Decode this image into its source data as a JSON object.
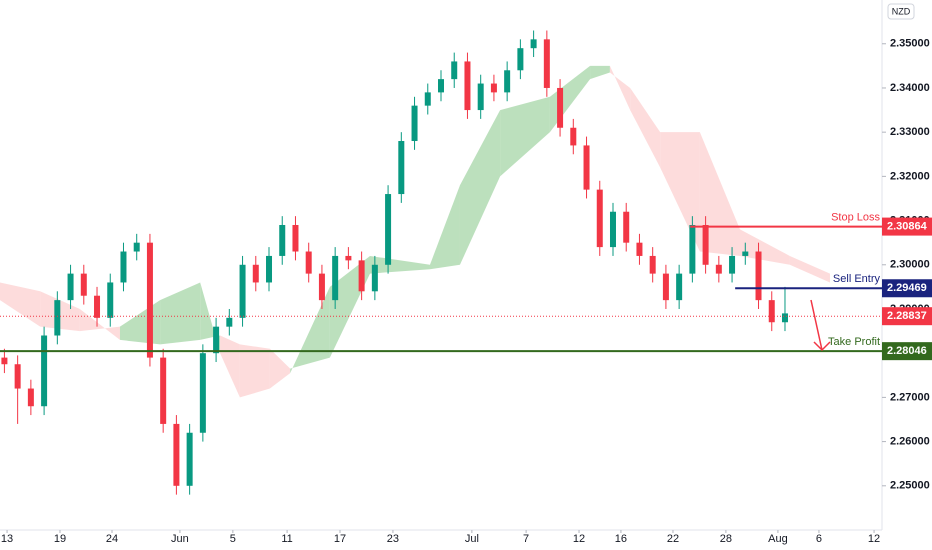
{
  "chart_data": {
    "type": "candlestick",
    "currency": "NZD",
    "xlim": [
      0,
      200
    ],
    "xticks": [
      {
        "value": 1.6,
        "label": "13"
      },
      {
        "value": 13.6,
        "label": "19"
      },
      {
        "value": 25.4,
        "label": "24"
      },
      {
        "value": 40.8,
        "label": "Jun"
      },
      {
        "value": 52.8,
        "label": "5"
      },
      {
        "value": 65.1,
        "label": "11"
      },
      {
        "value": 77.1,
        "label": "17"
      },
      {
        "value": 89.1,
        "label": "23"
      },
      {
        "value": 107,
        "label": "Jul"
      },
      {
        "value": 119.3,
        "label": "7"
      },
      {
        "value": 131.3,
        "label": "12"
      },
      {
        "value": 140.8,
        "label": "16"
      },
      {
        "value": 152.6,
        "label": "22"
      },
      {
        "value": 164.6,
        "label": "28"
      },
      {
        "value": 176.4,
        "label": "Aug"
      },
      {
        "value": 185.7,
        "label": "6"
      },
      {
        "value": 198.2,
        "label": "12"
      }
    ],
    "ylim": [
      2.24,
      2.3599
    ],
    "yticks": [
      {
        "value": 2.25,
        "label": "2.25000"
      },
      {
        "value": 2.26,
        "label": "2.26000"
      },
      {
        "value": 2.27,
        "label": "2.27000"
      },
      {
        "value": 2.28,
        "label": "2.28000"
      },
      {
        "value": 2.29,
        "label": "2.29000"
      },
      {
        "value": 2.3,
        "label": "2.30000"
      },
      {
        "value": 2.31,
        "label": "2.31000"
      },
      {
        "value": 2.32,
        "label": "2.32000"
      },
      {
        "value": 2.33,
        "label": "2.33000"
      },
      {
        "value": 2.34,
        "label": "2.34000"
      },
      {
        "value": 2.35,
        "label": "2.35000"
      }
    ],
    "up_color": "#089981",
    "down_color": "#f23645",
    "candles": [
      {
        "x": 1,
        "o": 2.279,
        "h": 2.281,
        "l": 2.2755,
        "c": 2.2775
      },
      {
        "x": 4,
        "o": 2.2775,
        "h": 2.2795,
        "l": 2.264,
        "c": 2.272
      },
      {
        "x": 7,
        "o": 2.272,
        "h": 2.274,
        "l": 2.266,
        "c": 2.268
      },
      {
        "x": 10,
        "o": 2.268,
        "h": 2.286,
        "l": 2.266,
        "c": 2.284
      },
      {
        "x": 13,
        "o": 2.284,
        "h": 2.294,
        "l": 2.282,
        "c": 2.292
      },
      {
        "x": 16,
        "o": 2.292,
        "h": 2.3,
        "l": 2.29,
        "c": 2.298
      },
      {
        "x": 19,
        "o": 2.298,
        "h": 2.3,
        "l": 2.291,
        "c": 2.293
      },
      {
        "x": 22,
        "o": 2.293,
        "h": 2.295,
        "l": 2.286,
        "c": 2.288
      },
      {
        "x": 25,
        "o": 2.288,
        "h": 2.298,
        "l": 2.286,
        "c": 2.296
      },
      {
        "x": 28,
        "o": 2.296,
        "h": 2.305,
        "l": 2.294,
        "c": 2.303
      },
      {
        "x": 31,
        "o": 2.303,
        "h": 2.307,
        "l": 2.301,
        "c": 2.305
      },
      {
        "x": 34,
        "o": 2.305,
        "h": 2.307,
        "l": 2.277,
        "c": 2.279
      },
      {
        "x": 37,
        "o": 2.279,
        "h": 2.281,
        "l": 2.262,
        "c": 2.264
      },
      {
        "x": 40,
        "o": 2.264,
        "h": 2.266,
        "l": 2.248,
        "c": 2.25
      },
      {
        "x": 43,
        "o": 2.25,
        "h": 2.264,
        "l": 2.248,
        "c": 2.262
      },
      {
        "x": 46,
        "o": 2.262,
        "h": 2.282,
        "l": 2.26,
        "c": 2.28
      },
      {
        "x": 49,
        "o": 2.28,
        "h": 2.288,
        "l": 2.278,
        "c": 2.286
      },
      {
        "x": 52,
        "o": 2.286,
        "h": 2.29,
        "l": 2.284,
        "c": 2.288
      },
      {
        "x": 55,
        "o": 2.288,
        "h": 2.302,
        "l": 2.286,
        "c": 2.3
      },
      {
        "x": 58,
        "o": 2.3,
        "h": 2.302,
        "l": 2.294,
        "c": 2.296
      },
      {
        "x": 61,
        "o": 2.296,
        "h": 2.304,
        "l": 2.294,
        "c": 2.302
      },
      {
        "x": 64,
        "o": 2.302,
        "h": 2.311,
        "l": 2.3,
        "c": 2.309
      },
      {
        "x": 67,
        "o": 2.309,
        "h": 2.311,
        "l": 2.301,
        "c": 2.303
      },
      {
        "x": 70,
        "o": 2.303,
        "h": 2.305,
        "l": 2.296,
        "c": 2.298
      },
      {
        "x": 73,
        "o": 2.298,
        "h": 2.3,
        "l": 2.29,
        "c": 2.292
      },
      {
        "x": 76,
        "o": 2.292,
        "h": 2.304,
        "l": 2.29,
        "c": 2.302
      },
      {
        "x": 79,
        "o": 2.302,
        "h": 2.304,
        "l": 2.299,
        "c": 2.301
      },
      {
        "x": 82,
        "o": 2.301,
        "h": 2.303,
        "l": 2.292,
        "c": 2.294
      },
      {
        "x": 85,
        "o": 2.294,
        "h": 2.302,
        "l": 2.292,
        "c": 2.3
      },
      {
        "x": 88,
        "o": 2.3,
        "h": 2.318,
        "l": 2.298,
        "c": 2.316
      },
      {
        "x": 91,
        "o": 2.316,
        "h": 2.33,
        "l": 2.314,
        "c": 2.328
      },
      {
        "x": 94,
        "o": 2.328,
        "h": 2.338,
        "l": 2.326,
        "c": 2.336
      },
      {
        "x": 97,
        "o": 2.336,
        "h": 2.341,
        "l": 2.334,
        "c": 2.339
      },
      {
        "x": 100,
        "o": 2.339,
        "h": 2.344,
        "l": 2.337,
        "c": 2.342
      },
      {
        "x": 103,
        "o": 2.342,
        "h": 2.348,
        "l": 2.34,
        "c": 2.346
      },
      {
        "x": 106,
        "o": 2.346,
        "h": 2.348,
        "l": 2.333,
        "c": 2.335
      },
      {
        "x": 109,
        "o": 2.335,
        "h": 2.343,
        "l": 2.333,
        "c": 2.341
      },
      {
        "x": 112,
        "o": 2.341,
        "h": 2.343,
        "l": 2.337,
        "c": 2.339
      },
      {
        "x": 115,
        "o": 2.339,
        "h": 2.346,
        "l": 2.337,
        "c": 2.344
      },
      {
        "x": 118,
        "o": 2.344,
        "h": 2.351,
        "l": 2.342,
        "c": 2.349
      },
      {
        "x": 121,
        "o": 2.349,
        "h": 2.353,
        "l": 2.347,
        "c": 2.351
      },
      {
        "x": 124,
        "o": 2.351,
        "h": 2.353,
        "l": 2.338,
        "c": 2.34
      },
      {
        "x": 127,
        "o": 2.34,
        "h": 2.342,
        "l": 2.329,
        "c": 2.331
      },
      {
        "x": 130,
        "o": 2.331,
        "h": 2.333,
        "l": 2.325,
        "c": 2.327
      },
      {
        "x": 133,
        "o": 2.327,
        "h": 2.329,
        "l": 2.315,
        "c": 2.317
      },
      {
        "x": 136,
        "o": 2.317,
        "h": 2.319,
        "l": 2.302,
        "c": 2.304
      },
      {
        "x": 139,
        "o": 2.304,
        "h": 2.314,
        "l": 2.302,
        "c": 2.312
      },
      {
        "x": 142,
        "o": 2.312,
        "h": 2.314,
        "l": 2.303,
        "c": 2.305
      },
      {
        "x": 145,
        "o": 2.305,
        "h": 2.307,
        "l": 2.3,
        "c": 2.302
      },
      {
        "x": 148,
        "o": 2.302,
        "h": 2.304,
        "l": 2.296,
        "c": 2.298
      },
      {
        "x": 151,
        "o": 2.298,
        "h": 2.3,
        "l": 2.29,
        "c": 2.292
      },
      {
        "x": 154,
        "o": 2.292,
        "h": 2.3,
        "l": 2.29,
        "c": 2.298
      },
      {
        "x": 157,
        "o": 2.298,
        "h": 2.311,
        "l": 2.296,
        "c": 2.309
      },
      {
        "x": 160,
        "o": 2.309,
        "h": 2.311,
        "l": 2.298,
        "c": 2.3
      },
      {
        "x": 163,
        "o": 2.3,
        "h": 2.302,
        "l": 2.296,
        "c": 2.298
      },
      {
        "x": 166,
        "o": 2.298,
        "h": 2.304,
        "l": 2.296,
        "c": 2.302
      },
      {
        "x": 169,
        "o": 2.302,
        "h": 2.305,
        "l": 2.3,
        "c": 2.303
      },
      {
        "x": 172,
        "o": 2.303,
        "h": 2.305,
        "l": 2.29,
        "c": 2.292
      },
      {
        "x": 175,
        "o": 2.292,
        "h": 2.294,
        "l": 2.285,
        "c": 2.287
      },
      {
        "x": 178,
        "o": 2.287,
        "h": 2.295,
        "l": 2.285,
        "c": 2.289
      }
    ],
    "cloud": {
      "up_color": "#a5d6a7",
      "down_color": "#fcd0d0",
      "x": [
        0,
        9.1,
        18.1,
        27.2,
        36.3,
        45.4,
        49.9,
        54.4,
        61.2,
        65.8,
        74.8,
        83.9,
        97.5,
        104.3,
        113.4,
        124.7,
        133.8,
        138.3,
        142.9,
        149.7,
        158.7,
        167.8,
        179.1,
        188.2
      ],
      "span_a": [
        2.292,
        2.286,
        2.285,
        2.286,
        2.292,
        2.296,
        2.28,
        2.27,
        2.272,
        2.2755,
        2.295,
        2.302,
        2.3,
        2.318,
        2.335,
        2.338,
        2.345,
        2.345,
        2.335,
        2.322,
        2.303,
        2.302,
        2.3,
        2.296
      ],
      "span_b": [
        2.296,
        2.294,
        2.29,
        2.283,
        2.282,
        2.283,
        2.284,
        2.282,
        2.281,
        2.2765,
        2.279,
        2.298,
        2.299,
        2.3,
        2.32,
        2.33,
        2.342,
        2.3435,
        2.34,
        2.33,
        2.33,
        2.308,
        2.302,
        2.298
      ]
    },
    "levels": [
      {
        "name": "Stop Loss",
        "value": 2.30864,
        "color": "#f23645",
        "start_x": 156.5
      },
      {
        "name": "Sell Entry",
        "value": 2.29469,
        "color": "#1a237e",
        "start_x": 166.7
      },
      {
        "name": "Take Profit",
        "value": 2.28046,
        "color": "#33691e",
        "start_x": 0
      }
    ],
    "last_price": {
      "value": 2.28837,
      "color": "#f23645"
    }
  }
}
